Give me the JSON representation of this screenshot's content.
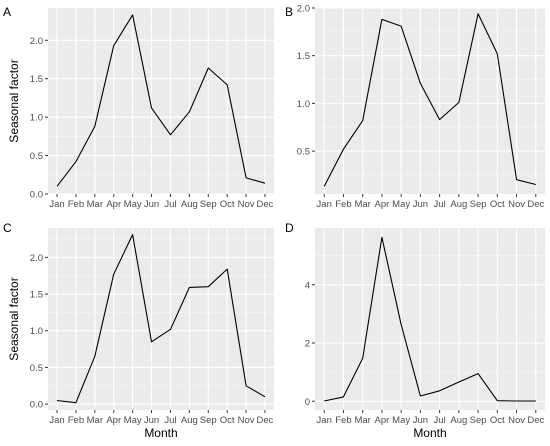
{
  "figure": {
    "y_label": "Seasonal factor",
    "x_label": "Month"
  },
  "chart_data": [
    {
      "panel": "A",
      "type": "line",
      "x": [
        "Jan",
        "Feb",
        "Mar",
        "Apr",
        "May",
        "Jun",
        "Jul",
        "Aug",
        "Sep",
        "Oct",
        "Nov",
        "Dec"
      ],
      "y": [
        0.1,
        0.42,
        0.88,
        1.93,
        2.33,
        1.12,
        0.77,
        1.07,
        1.64,
        1.42,
        0.21,
        0.14
      ],
      "ylim": [
        0,
        2.42
      ],
      "yticks": [
        0.0,
        0.5,
        1.0,
        1.5,
        2.0
      ],
      "ytick_labels": [
        "0.0",
        "0.5",
        "1.0",
        "1.5",
        "2.0"
      ],
      "ylabel": "Seasonal factor",
      "xlabel": "",
      "grid": true,
      "background": "#ebebeb",
      "line_color": "#000000"
    },
    {
      "panel": "B",
      "type": "line",
      "x": [
        "Jan",
        "Feb",
        "Mar",
        "Apr",
        "May",
        "Jun",
        "Jul",
        "Aug",
        "Sep",
        "Oct",
        "Nov",
        "Dec"
      ],
      "y": [
        0.13,
        0.52,
        0.82,
        1.88,
        1.81,
        1.21,
        0.83,
        1.01,
        1.94,
        1.52,
        0.2,
        0.15
      ],
      "ylim": [
        0.05,
        2.0
      ],
      "yticks": [
        0.5,
        1.0,
        1.5,
        2.0
      ],
      "ytick_labels": [
        "0.5",
        "1.0",
        "1.5",
        "2.0"
      ],
      "ylabel": "",
      "xlabel": "",
      "grid": true,
      "background": "#ebebeb",
      "line_color": "#000000"
    },
    {
      "panel": "C",
      "type": "line",
      "x": [
        "Jan",
        "Feb",
        "Mar",
        "Apr",
        "May",
        "Jun",
        "Jul",
        "Aug",
        "Sep",
        "Oct",
        "Nov",
        "Dec"
      ],
      "y": [
        0.05,
        0.02,
        0.65,
        1.77,
        2.31,
        0.85,
        1.02,
        1.59,
        1.6,
        1.84,
        0.25,
        0.1
      ],
      "ylim": [
        -0.08,
        2.4
      ],
      "yticks": [
        0.0,
        0.5,
        1.0,
        1.5,
        2.0
      ],
      "ytick_labels": [
        "0.0",
        "0.5",
        "1.0",
        "1.5",
        "2.0"
      ],
      "ylabel": "Seasonal factor",
      "xlabel": "Month",
      "grid": true,
      "background": "#ebebeb",
      "line_color": "#000000"
    },
    {
      "panel": "D",
      "type": "line",
      "x": [
        "Jan",
        "Feb",
        "Mar",
        "Apr",
        "May",
        "Jun",
        "Jul",
        "Aug",
        "Sep",
        "Oct",
        "Nov",
        "Dec"
      ],
      "y": [
        0.01,
        0.15,
        1.48,
        5.63,
        2.64,
        0.18,
        0.36,
        0.66,
        0.95,
        0.02,
        0.01,
        0.01
      ],
      "ylim": [
        -0.3,
        5.95
      ],
      "yticks": [
        0,
        2,
        4
      ],
      "ytick_labels": [
        "0",
        "2",
        "4"
      ],
      "ylabel": "",
      "xlabel": "Month",
      "grid": true,
      "background": "#ebebeb",
      "line_color": "#000000"
    }
  ]
}
